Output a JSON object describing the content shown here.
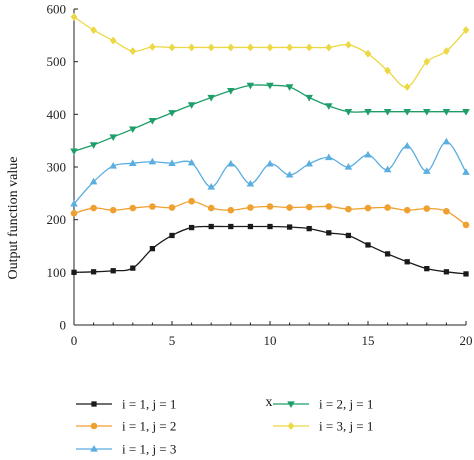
{
  "chart_data": {
    "type": "line",
    "xlabel": "x",
    "ylabel": "Output function value",
    "xlim": [
      0,
      20
    ],
    "ylim": [
      0,
      600
    ],
    "x_ticks": [
      0,
      5,
      10,
      15,
      20
    ],
    "y_ticks": [
      0,
      100,
      200,
      300,
      400,
      500,
      600
    ],
    "x": [
      0,
      1,
      2,
      3,
      4,
      5,
      6,
      7,
      8,
      9,
      10,
      11,
      12,
      13,
      14,
      15,
      16,
      17,
      18,
      19,
      20
    ],
    "legend_position": "bottom",
    "series": [
      {
        "name": "i = 1, j = 1",
        "color": "#1a1a1a",
        "marker": "square",
        "values": [
          100,
          101,
          103,
          108,
          145,
          170,
          185,
          187,
          187,
          187,
          187,
          186,
          183,
          175,
          170,
          152,
          135,
          120,
          107,
          101,
          97
        ]
      },
      {
        "name": "i = 1, j = 2",
        "color": "#f0a030",
        "marker": "circle",
        "values": [
          212,
          222,
          218,
          222,
          225,
          223,
          235,
          222,
          218,
          223,
          225,
          223,
          224,
          225,
          220,
          222,
          223,
          218,
          221,
          216,
          190
        ]
      },
      {
        "name": "i = 1, j = 3",
        "color": "#5aaee0",
        "marker": "triangle-up",
        "values": [
          230,
          272,
          302,
          307,
          310,
          307,
          308,
          262,
          306,
          268,
          306,
          285,
          306,
          318,
          300,
          323,
          295,
          340,
          292,
          348,
          290
        ]
      },
      {
        "name": "i = 2, j = 1",
        "color": "#1f9e6a",
        "marker": "triangle-down",
        "values": [
          330,
          342,
          357,
          372,
          388,
          403,
          418,
          432,
          445,
          455,
          455,
          452,
          432,
          416,
          405,
          405,
          405,
          405,
          405,
          405,
          405
        ]
      },
      {
        "name": "i = 3, j = 1",
        "color": "#ecd842",
        "marker": "diamond",
        "values": [
          585,
          560,
          540,
          520,
          528,
          527,
          527,
          527,
          527,
          527,
          527,
          527,
          527,
          527,
          532,
          515,
          483,
          452,
          500,
          520,
          560
        ]
      }
    ]
  }
}
